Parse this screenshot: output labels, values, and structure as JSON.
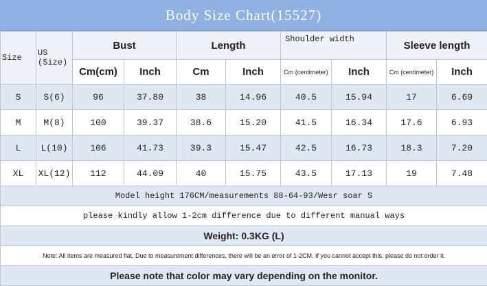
{
  "header": {
    "title": "Body Size Chart(15527)"
  },
  "table": {
    "groups": [
      "Size",
      "US (Size)",
      "Bust",
      "Length",
      "Shoulder width",
      "Sleeve length"
    ],
    "subheaders": [
      "Cm(cm)",
      "Inch",
      "Cm",
      "Inch",
      "Cm (centimeter)",
      "Inch",
      "Cm (centimeter)",
      "Inch"
    ],
    "rows": [
      [
        "S",
        "S(6)",
        "96",
        "37.80",
        "38",
        "14.96",
        "40.5",
        "15.94",
        "17",
        "6.69"
      ],
      [
        "M",
        "M(8)",
        "100",
        "39.37",
        "38.6",
        "15.20",
        "41.5",
        "16.34",
        "17.6",
        "6.93"
      ],
      [
        "L",
        "L(10)",
        "106",
        "41.73",
        "39.3",
        "15.47",
        "42.5",
        "16.73",
        "18.3",
        "7.20"
      ],
      [
        "XL",
        "XL(12)",
        "112",
        "44.09",
        "40",
        "15.75",
        "43.5",
        "17.13",
        "19",
        "7.48"
      ]
    ],
    "notes": [
      "Model height 176CM/measurements 88-64-93/Wesr soar S",
      "please kindly allow 1-2cm difference due to different manual ways",
      "Weight: 0.3KG (L)",
      "Note: All items are measured flat. Due to measurement differences, there will be an error of 1-2CM. If you cannot accept this, please do not order it.",
      "Please note that color may vary depending on the monitor."
    ]
  }
}
